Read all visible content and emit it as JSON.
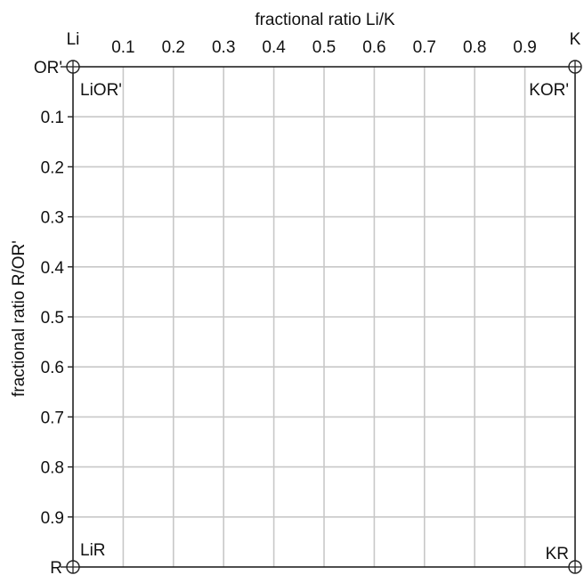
{
  "chart_data": {
    "type": "table",
    "title": "",
    "xlabel": "fractional ratio Li/K",
    "ylabel": "fractional ratio R/OR'",
    "xlim": [
      0,
      1
    ],
    "ylim": [
      0,
      1
    ],
    "y_inverted": true,
    "grid": true,
    "x_ticks": [
      "0.1",
      "0.2",
      "0.3",
      "0.4",
      "0.5",
      "0.6",
      "0.7",
      "0.8",
      "0.9"
    ],
    "y_ticks": [
      "0.1",
      "0.2",
      "0.3",
      "0.4",
      "0.5",
      "0.6",
      "0.7",
      "0.8",
      "0.9"
    ],
    "x_tick_values": [
      0.1,
      0.2,
      0.3,
      0.4,
      0.5,
      0.6,
      0.7,
      0.8,
      0.9
    ],
    "y_tick_values": [
      0.1,
      0.2,
      0.3,
      0.4,
      0.5,
      0.6,
      0.7,
      0.8,
      0.9
    ],
    "x_end_labels": {
      "left": "Li",
      "right": "K"
    },
    "y_end_labels": {
      "top": "OR'",
      "bottom": "R"
    },
    "corner_labels": {
      "top_left": "LiOR'",
      "top_right": "KOR'",
      "bottom_left": "LiR",
      "bottom_right": "KR"
    },
    "colors": {
      "grid": "#c8c8c8",
      "frame": "#222222",
      "text": "#111111"
    }
  }
}
